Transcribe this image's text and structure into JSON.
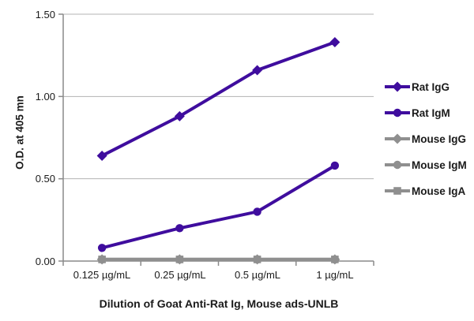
{
  "chart_data": {
    "type": "line",
    "title": "",
    "xlabel": "Dilution of Goat Anti-Rat Ig, Mouse ads-UNLB",
    "ylabel": "O.D. at 405 mn",
    "categories": [
      "0.125 µg/mL",
      "0.25 µg/mL",
      "0.5 µg/mL",
      "1 µg/mL"
    ],
    "yticks": [
      "0.00",
      "0.50",
      "1.00",
      "1.50"
    ],
    "ylim": [
      0,
      1.5
    ],
    "grid": "horizontal",
    "legend_position": "right",
    "colors": {
      "purple": "#3F0D9E",
      "gray": "#8F8F8F"
    },
    "series": [
      {
        "name": "Rat IgG",
        "color": "#3F0D9E",
        "marker": "diamond",
        "values": [
          0.64,
          0.88,
          1.16,
          1.33
        ]
      },
      {
        "name": "Rat IgM",
        "color": "#3F0D9E",
        "marker": "circle",
        "values": [
          0.08,
          0.2,
          0.3,
          0.58
        ]
      },
      {
        "name": "Mouse IgG",
        "color": "#8F8F8F",
        "marker": "diamond",
        "values": [
          0.01,
          0.01,
          0.01,
          0.01
        ]
      },
      {
        "name": "Mouse IgM",
        "color": "#8F8F8F",
        "marker": "circle",
        "values": [
          0.01,
          0.01,
          0.01,
          0.01
        ]
      },
      {
        "name": "Mouse IgA",
        "color": "#8F8F8F",
        "marker": "square",
        "values": [
          0.01,
          0.01,
          0.01,
          0.01
        ]
      }
    ]
  }
}
